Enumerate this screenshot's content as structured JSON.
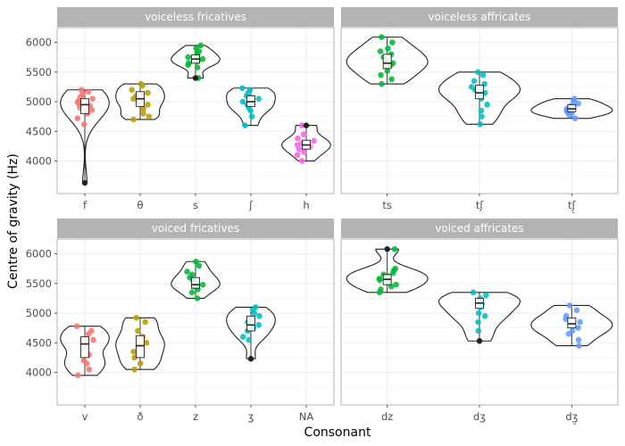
{
  "chart_data": {
    "type": "violin",
    "xlabel": "Consonant",
    "ylabel": "Centre of gravity (Hz)",
    "ylim": [
      3450,
      6250
    ],
    "y_ticks": [
      4000,
      4500,
      5000,
      5500,
      6000
    ],
    "y_tick_labels": [
      "4000",
      "4500",
      "5000",
      "5500",
      "6000"
    ],
    "grid": true,
    "colors": {
      "f": "#F8766D",
      "v": "#F8766D",
      "θ": "#B79F00",
      "ð": "#B79F00",
      "s": "#00BA38",
      "z": "#00BA38",
      "ts": "#00BA38",
      "dz": "#00BA38",
      "ʃ": "#00BFC4",
      "ʒ": "#00BFC4",
      "tʃ": "#00BFC4",
      "dʒ": "#00BFC4",
      "tʃ_": "#619CFF",
      "dʒ_": "#619CFF",
      "h": "#F564E3",
      "NA": "#999999"
    },
    "panels": [
      {
        "title": "voiceless fricatives",
        "categories": [
          "f",
          "θ",
          "s",
          "ʃ",
          "h"
        ],
        "groups": [
          {
            "label": "f",
            "key": "f",
            "min": 3630,
            "q1": 4800,
            "median": 4950,
            "q3": 5050,
            "max": 5200,
            "outliers": [
              3630
            ],
            "points": [
              5200,
              5170,
              5120,
              5080,
              5050,
              5020,
              4990,
              4960,
              4930,
              4900,
              4860,
              4800,
              4720,
              4620
            ]
          },
          {
            "label": "θ",
            "key": "θ",
            "min": 4700,
            "q1": 4920,
            "median": 5050,
            "q3": 5170,
            "max": 5300,
            "outliers": [],
            "points": [
              5300,
              5270,
              5200,
              5150,
              5100,
              5050,
              5000,
              4950,
              4880,
              4800,
              4750,
              4700
            ]
          },
          {
            "label": "s",
            "key": "s",
            "min": 5400,
            "q1": 5650,
            "median": 5720,
            "q3": 5790,
            "max": 5950,
            "outliers": [
              5400
            ],
            "points": [
              5950,
              5900,
              5850,
              5820,
              5780,
              5750,
              5720,
              5700,
              5680,
              5650,
              5620,
              5580,
              5400
            ]
          },
          {
            "label": "ʃ",
            "key": "ʃ",
            "min": 4600,
            "q1": 4920,
            "median": 5000,
            "q3": 5100,
            "max": 5230,
            "outliers": [],
            "points": [
              5230,
              5200,
              5150,
              5100,
              5050,
              5000,
              4950,
              4900,
              4850,
              4750,
              4600
            ]
          },
          {
            "label": "h",
            "key": "h",
            "min": 4000,
            "q1": 4200,
            "median": 4270,
            "q3": 4350,
            "max": 4600,
            "outliers": [
              4600
            ],
            "points": [
              4600,
              4450,
              4380,
              4340,
              4300,
              4270,
              4240,
              4200,
              4150,
              4100,
              4000
            ]
          }
        ]
      },
      {
        "title": "voiceless affricates",
        "categories": [
          "ts",
          "tʃ",
          "tʃ̠"
        ],
        "groups": [
          {
            "label": "ts",
            "key": "ts",
            "min": 5300,
            "q1": 5560,
            "median": 5650,
            "q3": 5800,
            "max": 6090,
            "outliers": [],
            "points": [
              6090,
              6000,
              5900,
              5850,
              5800,
              5750,
              5700,
              5650,
              5620,
              5580,
              5520,
              5450,
              5380,
              5300
            ]
          },
          {
            "label": "tʃ",
            "key": "tʃ",
            "min": 4620,
            "q1": 5050,
            "median": 5150,
            "q3": 5280,
            "max": 5500,
            "outliers": [],
            "points": [
              5500,
              5450,
              5350,
              5300,
              5250,
              5200,
              5150,
              5100,
              5050,
              4950,
              4850,
              4750,
              4620
            ]
          },
          {
            "label": "tʃ̠",
            "key": "tʃ_",
            "min": 4720,
            "q1": 4830,
            "median": 4880,
            "q3": 4950,
            "max": 5050,
            "outliers": [],
            "points": [
              5050,
              5000,
              4970,
              4930,
              4900,
              4880,
              4850,
              4820,
              4800,
              4770,
              4720
            ]
          }
        ]
      },
      {
        "title": "voiced fricatives",
        "categories": [
          "v",
          "ð",
          "z",
          "ʒ",
          "NA"
        ],
        "groups": [
          {
            "label": "v",
            "key": "v",
            "min": 3950,
            "q1": 4250,
            "median": 4480,
            "q3": 4600,
            "max": 4780,
            "outliers": [],
            "points": [
              4780,
              4700,
              4650,
              4550,
              4500,
              4450,
              4300,
              4200,
              4150,
              4050,
              3950
            ]
          },
          {
            "label": "ð",
            "key": "ð",
            "min": 4050,
            "q1": 4250,
            "median": 4450,
            "q3": 4620,
            "max": 4920,
            "outliers": [],
            "points": [
              4920,
              4850,
              4700,
              4600,
              4500,
              4450,
              4350,
              4250,
              4150,
              4050
            ]
          },
          {
            "label": "z",
            "key": "z",
            "min": 5250,
            "q1": 5420,
            "median": 5480,
            "q3": 5600,
            "max": 5870,
            "outliers": [],
            "points": [
              5870,
              5800,
              5700,
              5650,
              5600,
              5550,
              5500,
              5480,
              5450,
              5400,
              5350,
              5250
            ]
          },
          {
            "label": "ʒ",
            "key": "ʒ",
            "min": 4230,
            "q1": 4700,
            "median": 4800,
            "q3": 4950,
            "max": 5100,
            "outliers": [
              4230
            ],
            "points": [
              5100,
              5050,
              5000,
              4950,
              4900,
              4850,
              4800,
              4750,
              4700,
              4600,
              4550
            ]
          },
          {
            "label": "NA",
            "key": "NA",
            "empty": true
          }
        ]
      },
      {
        "title": "voiced affricates",
        "categories": [
          "dz",
          "dʒ",
          "dʒ̠"
        ],
        "groups": [
          {
            "label": "dz",
            "key": "dz",
            "min": 5350,
            "q1": 5480,
            "median": 5570,
            "q3": 5650,
            "max": 6080,
            "outliers": [
              6080
            ],
            "points": [
              6080,
              5750,
              5720,
              5680,
              5650,
              5620,
              5580,
              5560,
              5520,
              5480,
              5450,
              5400,
              5350
            ]
          },
          {
            "label": "dʒ",
            "key": "dʒ",
            "min": 4530,
            "q1": 5080,
            "median": 5170,
            "q3": 5250,
            "max": 5350,
            "outliers": [
              4530
            ],
            "points": [
              5350,
              5300,
              5250,
              5200,
              5150,
              5100,
              5000,
              4950,
              4850,
              4700
            ]
          },
          {
            "label": "dʒ̠",
            "key": "dʒ_",
            "min": 4450,
            "q1": 4750,
            "median": 4820,
            "q3": 4920,
            "max": 5130,
            "outliers": [],
            "points": [
              5130,
              5050,
              4950,
              4900,
              4850,
              4800,
              4750,
              4700,
              4650,
              4550,
              4450
            ]
          }
        ]
      }
    ]
  }
}
